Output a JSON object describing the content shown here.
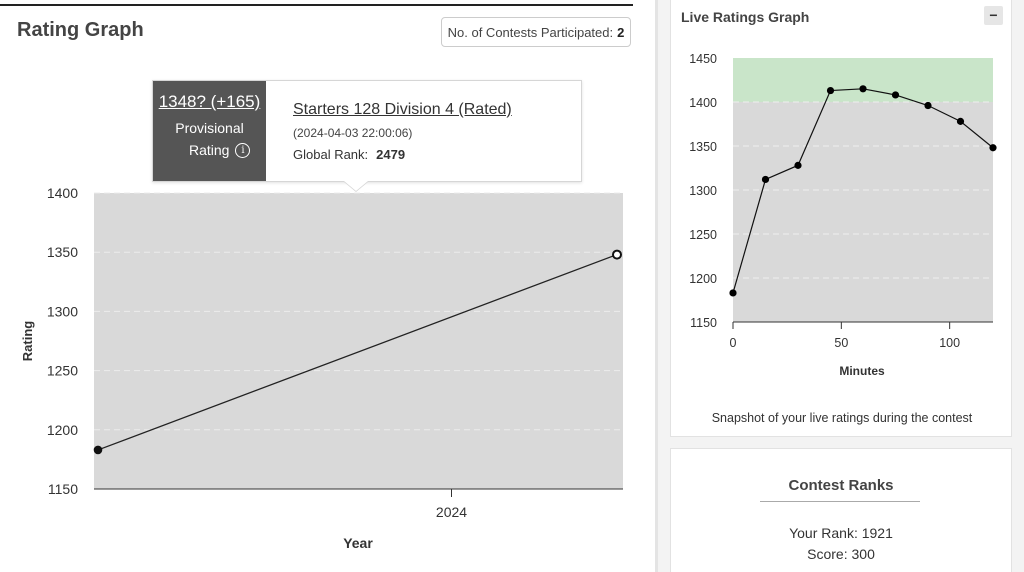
{
  "rating_graph": {
    "title": "Rating Graph",
    "contests_label": "No. of Contests Participated:",
    "contests_count": "2",
    "tooltip": {
      "rating": "1348? (+165)",
      "provisional": "Provisional",
      "rating_label": "Rating",
      "info_icon": "i",
      "contest_name": "Starters 128 Division 4 (Rated)",
      "datetime": "(2024-04-03 22:00:06)",
      "global_rank_label": "Global Rank:",
      "global_rank_value": "2479"
    }
  },
  "live_ratings": {
    "title": "Live Ratings Graph",
    "collapse_icon": "−",
    "snapshot_text": "Snapshot of your live ratings during the contest"
  },
  "contest_ranks": {
    "title": "Contest Ranks",
    "your_rank": "Your Rank: 1921",
    "score": "Score: 300"
  },
  "chart_data": [
    {
      "type": "line",
      "title": "",
      "xlabel": "Year",
      "ylabel": "Rating",
      "x_ticks": [
        "2024"
      ],
      "yticks": [
        1150,
        1200,
        1250,
        1300,
        1350,
        1400
      ],
      "ylim": [
        1150,
        1400
      ],
      "grid": true,
      "series": [
        {
          "points": [
            {
              "x": "2024-03-27",
              "y": 1183
            },
            {
              "x": "2024-04-03",
              "y": 1348
            }
          ]
        }
      ],
      "colors": {
        "plot_bg": "#d9d9d9",
        "line": "#222222"
      }
    },
    {
      "type": "line",
      "title": "",
      "xlabel": "Minutes",
      "ylabel": "",
      "xticks": [
        0,
        50,
        100
      ],
      "yticks": [
        1150,
        1200,
        1250,
        1300,
        1350,
        1400,
        1450
      ],
      "xlim": [
        0,
        120
      ],
      "ylim": [
        1150,
        1450
      ],
      "grid": true,
      "bands": [
        {
          "from": 1400,
          "to": 1450,
          "color": "#c9e5c9"
        },
        {
          "from": 1150,
          "to": 1400,
          "color": "#d9d9d9"
        }
      ],
      "series": [
        {
          "points": [
            {
              "x": 0,
              "y": 1183
            },
            {
              "x": 15,
              "y": 1312
            },
            {
              "x": 30,
              "y": 1328
            },
            {
              "x": 45,
              "y": 1413
            },
            {
              "x": 60,
              "y": 1415
            },
            {
              "x": 75,
              "y": 1408
            },
            {
              "x": 90,
              "y": 1396
            },
            {
              "x": 105,
              "y": 1378
            },
            {
              "x": 120,
              "y": 1348
            }
          ]
        }
      ]
    }
  ]
}
